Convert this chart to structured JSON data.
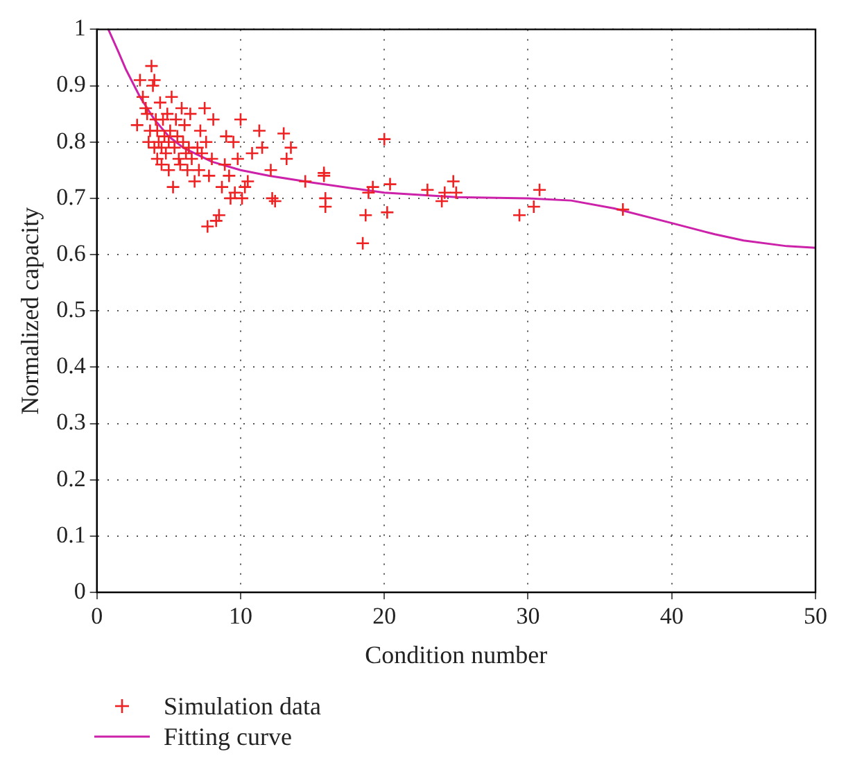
{
  "chart_data": {
    "type": "scatter",
    "xlabel": "Condition number",
    "ylabel": "Normalized capacity",
    "xlim": [
      0,
      50
    ],
    "ylim": [
      0,
      1
    ],
    "xticks": [
      0,
      10,
      20,
      30,
      40,
      50
    ],
    "yticks": [
      0,
      0.1,
      0.2,
      0.3,
      0.4,
      0.5,
      0.6,
      0.7,
      0.8,
      0.9,
      1
    ],
    "grid": true,
    "legend": "bottom left",
    "series": [
      {
        "name": "Simulation data",
        "color": "#ee2222",
        "marker": "cross",
        "x": [
          2.8,
          3.0,
          3.2,
          3.4,
          3.5,
          3.6,
          3.7,
          3.8,
          3.9,
          4.0,
          4.0,
          4.1,
          4.2,
          4.2,
          4.3,
          4.4,
          4.5,
          4.5,
          4.6,
          4.7,
          4.8,
          4.9,
          5.0,
          5.0,
          5.1,
          5.2,
          5.3,
          5.4,
          5.5,
          5.6,
          5.7,
          5.8,
          5.9,
          6.0,
          6.1,
          6.2,
          6.3,
          6.4,
          6.5,
          6.6,
          6.8,
          7.0,
          7.1,
          7.2,
          7.3,
          7.5,
          7.6,
          7.7,
          7.8,
          8.0,
          8.1,
          8.3,
          8.5,
          8.7,
          8.9,
          9.0,
          9.2,
          9.3,
          9.5,
          9.6,
          9.8,
          10.0,
          10.1,
          10.3,
          10.5,
          10.8,
          11.3,
          11.5,
          12.1,
          12.2,
          12.4,
          13.0,
          13.2,
          13.5,
          14.5,
          15.8,
          15.8,
          15.9,
          15.9,
          18.5,
          18.7,
          18.9,
          19.2,
          20.0,
          20.2,
          20.4,
          23.0,
          24.0,
          24.2,
          24.8,
          25.0,
          29.4,
          30.4,
          30.8,
          36.6
        ],
        "values": [
          0.83,
          0.91,
          0.88,
          0.86,
          0.85,
          0.8,
          0.82,
          0.935,
          0.9,
          0.91,
          0.79,
          0.84,
          0.77,
          0.82,
          0.8,
          0.87,
          0.79,
          0.76,
          0.84,
          0.81,
          0.78,
          0.85,
          0.8,
          0.75,
          0.82,
          0.88,
          0.72,
          0.79,
          0.84,
          0.81,
          0.77,
          0.76,
          0.86,
          0.8,
          0.83,
          0.78,
          0.75,
          0.79,
          0.85,
          0.77,
          0.73,
          0.79,
          0.75,
          0.82,
          0.78,
          0.86,
          0.8,
          0.65,
          0.74,
          0.77,
          0.84,
          0.66,
          0.67,
          0.72,
          0.76,
          0.81,
          0.74,
          0.7,
          0.8,
          0.71,
          0.77,
          0.84,
          0.7,
          0.72,
          0.73,
          0.78,
          0.82,
          0.79,
          0.75,
          0.7,
          0.695,
          0.815,
          0.77,
          0.79,
          0.73,
          0.745,
          0.74,
          0.7,
          0.685,
          0.62,
          0.67,
          0.71,
          0.72,
          0.805,
          0.675,
          0.725,
          0.715,
          0.695,
          0.71,
          0.73,
          0.71,
          0.67,
          0.685,
          0.715,
          0.68
        ]
      },
      {
        "name": "Fitting curve",
        "color": "#cc22aa",
        "type": "line",
        "marker": "none",
        "line_style": "solid",
        "x": [
          0.8,
          1.5,
          2,
          3,
          4,
          5,
          6,
          8,
          10,
          12,
          15,
          18,
          20,
          25,
          30,
          33,
          36,
          40,
          43,
          45,
          48,
          50
        ],
        "values": [
          1,
          0.96,
          0.93,
          0.88,
          0.84,
          0.81,
          0.79,
          0.765,
          0.75,
          0.74,
          0.728,
          0.717,
          0.71,
          0.702,
          0.7,
          0.696,
          0.682,
          0.656,
          0.636,
          0.625,
          0.615,
          0.612
        ]
      }
    ]
  }
}
